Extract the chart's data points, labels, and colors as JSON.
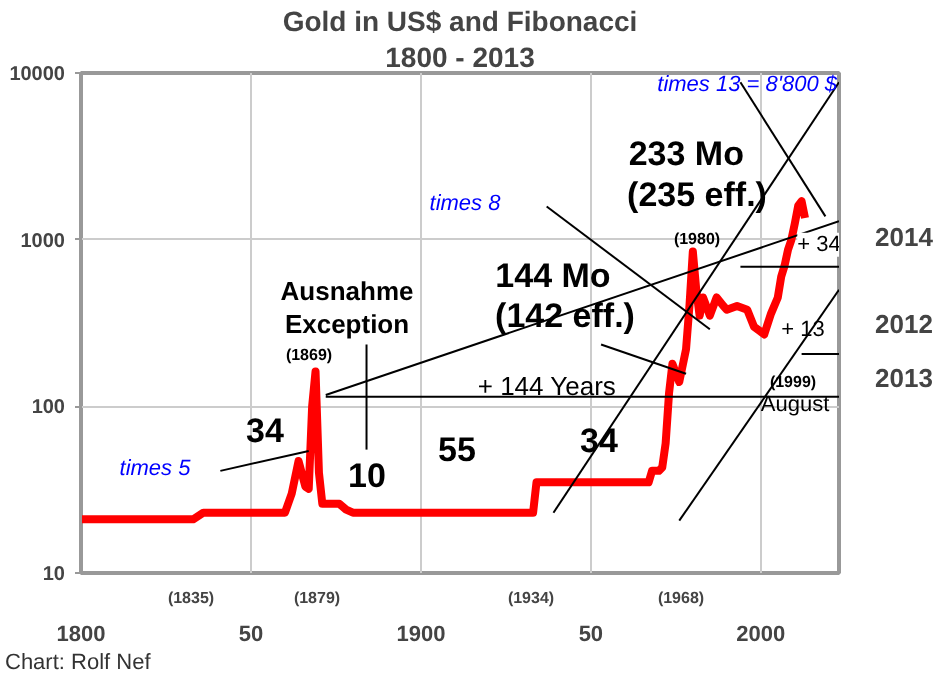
{
  "chart_data": {
    "type": "line",
    "title": "Gold in US$ and Fibonacci",
    "subtitle": "1800 - 2013",
    "log": "y",
    "grid": true,
    "xlim": [
      1800,
      2023
    ],
    "ylim": [
      10,
      10000
    ],
    "xticks": [
      1800,
      {
        "value": 1850,
        "label": "50"
      },
      1900,
      {
        "value": 1950,
        "label": "50"
      },
      2000
    ],
    "yticks": [
      10,
      100,
      1000,
      10000
    ],
    "series": [
      {
        "color": "#ff0000",
        "x": [
          1800,
          1833,
          1836,
          1860,
          1862,
          1864,
          1866,
          1867,
          1868,
          1869,
          1870,
          1871,
          1876,
          1878,
          1880,
          1933,
          1934,
          1967,
          1968,
          1970,
          1971,
          1972,
          1973,
          1974,
          1976,
          1978,
          1979,
          1980,
          1981,
          1982,
          1983,
          1985,
          1987,
          1989,
          1990,
          1993,
          1996,
          1998,
          2000,
          2001,
          2003,
          2005,
          2006,
          2007,
          2008,
          2009,
          2010,
          2011,
          2012,
          2013
        ],
        "values": [
          21,
          21,
          23,
          23,
          30,
          47,
          33,
          32,
          100,
          162,
          40,
          26,
          26,
          24,
          23,
          23,
          35,
          35,
          41,
          41,
          43,
          60,
          120,
          180,
          140,
          220,
          400,
          850,
          500,
          350,
          450,
          350,
          450,
          400,
          380,
          400,
          380,
          300,
          280,
          270,
          360,
          450,
          600,
          700,
          870,
          1000,
          1250,
          1600,
          1700,
          1350
        ]
      },
      {
        "color": "#000000",
        "x": [
          1841,
          1867
        ],
        "values": [
          41,
          54
        ]
      },
      {
        "color": "#000000",
        "x": [
          1872,
          2023
        ],
        "values": [
          117,
          1290
        ]
      },
      {
        "color": "#000000",
        "x": [
          1872,
          2023
        ],
        "values": [
          114,
          114
        ]
      },
      {
        "color": "#000000",
        "x": [
          1884,
          1884
        ],
        "values": [
          235,
          55
        ]
      },
      {
        "color": "#000000",
        "x": [
          1939,
          2023
        ],
        "values": [
          23,
          8800
        ]
      },
      {
        "color": "#000000",
        "x": [
          1976,
          2023
        ],
        "values": [
          20.6,
          500
        ]
      },
      {
        "color": "#000000",
        "x": [
          1994,
          2023
        ],
        "values": [
          687,
          687
        ]
      },
      {
        "color": "#000000",
        "x": [
          2012,
          2023
        ],
        "values": [
          206,
          206
        ]
      },
      {
        "color": "#000000",
        "x": [
          1937,
          1985
        ],
        "values": [
          1580,
          290
        ]
      },
      {
        "color": "#000000",
        "x": [
          1953,
          1978
        ],
        "values": [
          235,
          157
        ]
      },
      {
        "color": "#000000",
        "x": [
          1994,
          2019
        ],
        "values": [
          8800,
          1380
        ]
      }
    ],
    "annotations": [
      "times 13 = 8'800 $",
      "233  Mo",
      "(235 eff.)",
      "times 8",
      "144 Mo",
      "(142 eff.)",
      "(1980)",
      "+ 34",
      "2014",
      "+ 13",
      "2012",
      "2013",
      "(1999)",
      "August",
      "Ausnahme",
      "Exception",
      "(1869)",
      "+ 144 Years",
      "34",
      "10",
      "55",
      "34",
      "times 5",
      "(1835)",
      "(1879)",
      "(1934)",
      "(1968)",
      "Chart: Rolf Nef"
    ]
  }
}
